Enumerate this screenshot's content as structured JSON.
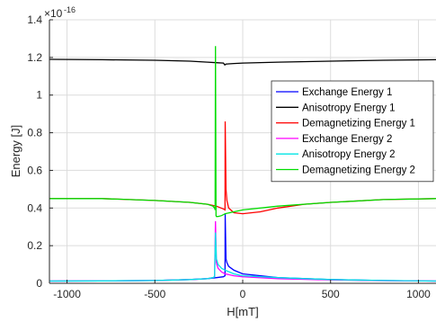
{
  "chart_data": {
    "type": "line",
    "xlabel": "H[mT]",
    "ylabel": "Energy [J]",
    "exponent_label": "×10",
    "exponent_power": "-16",
    "xlim": [
      -1100,
      1100
    ],
    "ylim": [
      0,
      1.4
    ],
    "x_ticks": [
      -1000,
      -500,
      0,
      500,
      1000
    ],
    "x_tick_labels": [
      "-1000",
      "-500",
      "0",
      "500",
      "1000"
    ],
    "y_ticks": [
      0,
      0.2,
      0.4,
      0.6,
      0.8,
      1.0,
      1.2,
      1.4
    ],
    "y_tick_labels": [
      "0",
      "0.2",
      "0.4",
      "0.6",
      "0.8",
      "1",
      "1.2",
      "1.4"
    ],
    "grid": true,
    "legend_position": "right",
    "series": [
      {
        "name": "Exchange Energy 1",
        "color": "#0000ff",
        "x": [
          -1100,
          -800,
          -500,
          -300,
          -200,
          -150,
          -110,
          -101,
          -100,
          -95,
          -90,
          -80,
          -50,
          0,
          200,
          500,
          800,
          1100
        ],
        "y": [
          0.012,
          0.013,
          0.015,
          0.02,
          0.025,
          0.03,
          0.035,
          0.04,
          0.37,
          0.13,
          0.11,
          0.09,
          0.07,
          0.05,
          0.03,
          0.02,
          0.015,
          0.012
        ]
      },
      {
        "name": "Anisotropy Energy 1",
        "color": "#000000",
        "x": [
          -1100,
          -800,
          -500,
          -300,
          -200,
          -150,
          -110,
          -102,
          -95,
          -80,
          -50,
          0,
          200,
          500,
          800,
          1100
        ],
        "y": [
          1.19,
          1.188,
          1.185,
          1.18,
          1.175,
          1.172,
          1.17,
          1.16,
          1.165,
          1.166,
          1.168,
          1.17,
          1.175,
          1.18,
          1.185,
          1.188
        ]
      },
      {
        "name": "Demagnetizing Energy 1",
        "color": "#ff0000",
        "x": [
          -1100,
          -800,
          -500,
          -300,
          -200,
          -150,
          -110,
          -101,
          -100,
          -95,
          -90,
          -80,
          -50,
          0,
          100,
          200,
          350,
          500,
          800,
          1100
        ],
        "y": [
          0.45,
          0.45,
          0.44,
          0.43,
          0.42,
          0.41,
          0.395,
          0.39,
          0.86,
          0.5,
          0.44,
          0.4,
          0.375,
          0.37,
          0.38,
          0.4,
          0.42,
          0.43,
          0.445,
          0.45
        ]
      },
      {
        "name": "Exchange Energy 2",
        "color": "#ff00ff",
        "x": [
          -1100,
          -800,
          -500,
          -300,
          -200,
          -170,
          -160,
          -155,
          -150,
          -140,
          -120,
          -100,
          -50,
          0,
          200,
          500,
          800,
          1100
        ],
        "y": [
          0.012,
          0.013,
          0.015,
          0.02,
          0.025,
          0.03,
          0.035,
          0.33,
          0.11,
          0.08,
          0.06,
          0.05,
          0.04,
          0.035,
          0.025,
          0.018,
          0.014,
          0.012
        ]
      },
      {
        "name": "Anisotropy Energy 2",
        "color": "#00e5e5",
        "x": [
          -1100,
          -800,
          -500,
          -300,
          -200,
          -170,
          -160,
          -155,
          -150,
          -140,
          -120,
          -100,
          -50,
          0,
          200,
          500,
          800,
          1100
        ],
        "y": [
          0.012,
          0.013,
          0.015,
          0.02,
          0.025,
          0.03,
          0.035,
          0.27,
          0.13,
          0.1,
          0.08,
          0.07,
          0.05,
          0.04,
          0.03,
          0.02,
          0.015,
          0.012
        ]
      },
      {
        "name": "Demagnetizing Energy 2",
        "color": "#00dd00",
        "x": [
          -1100,
          -800,
          -500,
          -300,
          -200,
          -170,
          -160,
          -157,
          -155,
          -152,
          -150,
          -140,
          -120,
          -100,
          -50,
          0,
          200,
          500,
          800,
          1100
        ],
        "y": [
          0.45,
          0.45,
          0.44,
          0.43,
          0.42,
          0.41,
          0.4,
          0.39,
          1.26,
          0.36,
          0.355,
          0.355,
          0.36,
          0.37,
          0.38,
          0.39,
          0.41,
          0.43,
          0.445,
          0.45
        ]
      }
    ]
  }
}
